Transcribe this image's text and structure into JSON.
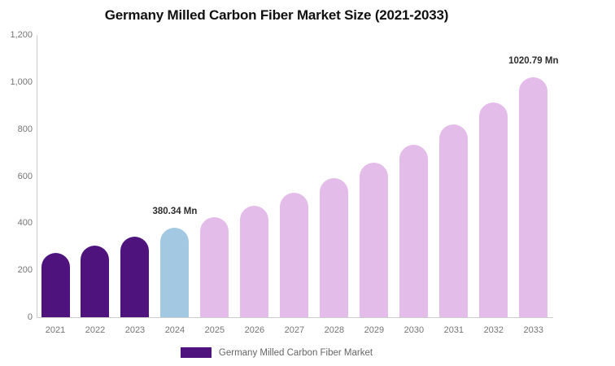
{
  "title": "Germany Milled Carbon Fiber Market Size (2021-2033)",
  "legend": {
    "label": "Germany Milled Carbon Fiber Market",
    "swatch_color": "#4F137E"
  },
  "colors": {
    "historical_bar": "#4F137E",
    "base_year_bar": "#A3C9E2",
    "forecast_bar": "#E4BCE9",
    "axis_line": "#cccccc",
    "tick_label": "#757575",
    "data_label": "#2e2e2e"
  },
  "y_axis": {
    "tick_labels": [
      "1,200",
      "1,000",
      "800",
      "600",
      "400",
      "200",
      "0"
    ],
    "tick_values": [
      1200,
      1000,
      800,
      600,
      400,
      200,
      0
    ]
  },
  "chart_data": {
    "type": "bar",
    "title": "Germany Milled Carbon Fiber Market Size (2021-2033)",
    "categories": [
      "2021",
      "2022",
      "2023",
      "2024",
      "2025",
      "2026",
      "2027",
      "2028",
      "2029",
      "2030",
      "2031",
      "2032",
      "2033"
    ],
    "series": [
      {
        "name": "Germany Milled Carbon Fiber Market",
        "values": [
          273.7,
          305.4,
          340.8,
          380.34,
          424.4,
          473.6,
          528.4,
          589.7,
          658.0,
          734.2,
          819.2,
          914.1,
          1020.79
        ]
      }
    ],
    "bar_colors": [
      "#4F137E",
      "#4F137E",
      "#4F137E",
      "#A3C9E2",
      "#E4BCE9",
      "#E4BCE9",
      "#E4BCE9",
      "#E4BCE9",
      "#E4BCE9",
      "#E4BCE9",
      "#E4BCE9",
      "#E4BCE9",
      "#E4BCE9"
    ],
    "unit": "Mn",
    "xlabel": "",
    "ylabel": "",
    "ylim": [
      0,
      1200
    ],
    "grid": false,
    "legend_position": "bottom",
    "data_labels": [
      {
        "category": "2024",
        "text": "380.34 Mn"
      },
      {
        "category": "2033",
        "text": "1020.79 Mn"
      }
    ]
  }
}
